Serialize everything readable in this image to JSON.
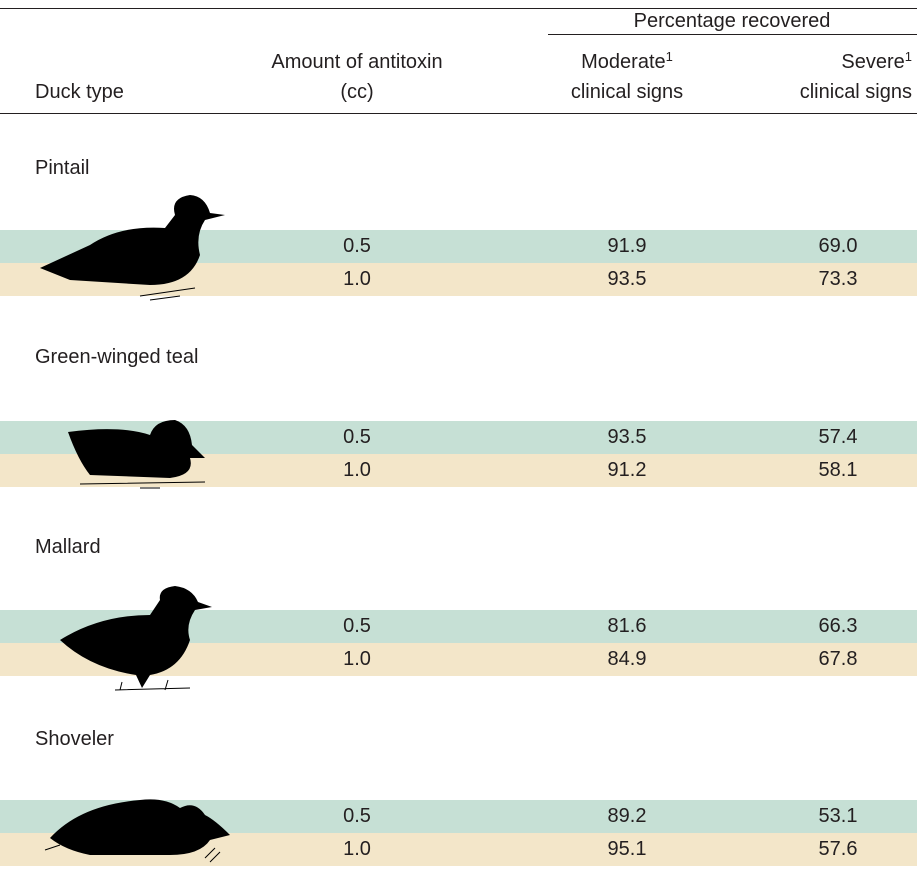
{
  "header": {
    "group_title": "Percentage recovered",
    "columns": [
      {
        "lines": [
          "Duck type"
        ]
      },
      {
        "lines": [
          "Amount of antitoxin",
          "(cc)"
        ]
      },
      {
        "lines": [
          "Moderate",
          "clinical signs"
        ],
        "footnote": "1"
      },
      {
        "lines": [
          "Severe",
          "clinical signs"
        ],
        "footnote": "1"
      }
    ]
  },
  "groups": [
    {
      "name": "Pintail",
      "rows": [
        [
          "0.5",
          "91.9",
          "69.0"
        ],
        [
          "1.0",
          "93.5",
          "73.3"
        ]
      ]
    },
    {
      "name": "Green-winged teal",
      "rows": [
        [
          "0.5",
          "93.5",
          "57.4"
        ],
        [
          "1.0",
          "91.2",
          "58.1"
        ]
      ]
    },
    {
      "name": "Mallard",
      "rows": [
        [
          "0.5",
          "81.6",
          "66.3"
        ],
        [
          "1.0",
          "84.9",
          "67.8"
        ]
      ]
    },
    {
      "name": "Shoveler",
      "rows": [
        [
          "0.5",
          "89.2",
          "53.1"
        ],
        [
          "1.0",
          "95.1",
          "57.6"
        ]
      ]
    }
  ]
}
